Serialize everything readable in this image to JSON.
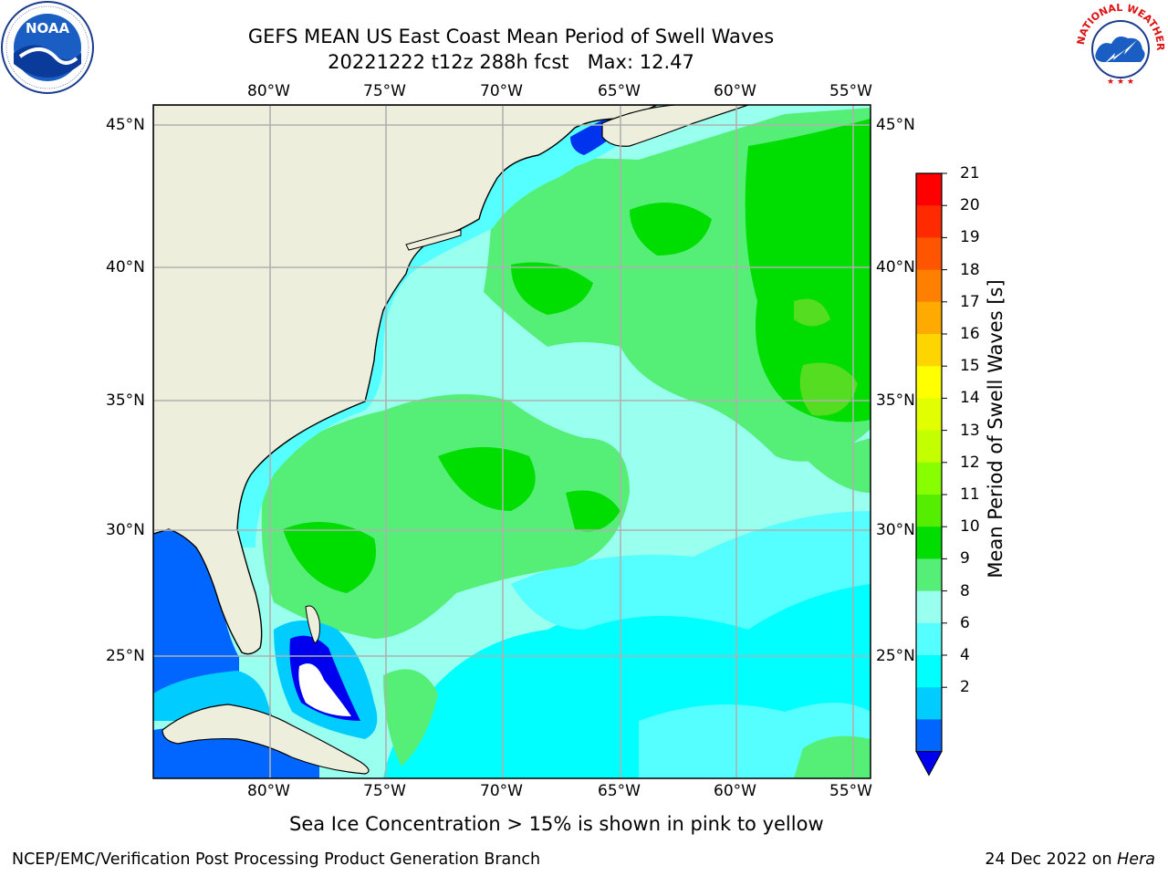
{
  "header": {
    "title_line1": "GEFS MEAN US East Coast Mean Period of Swell Waves",
    "title_line2": "20221222 t12z 288h fcst   Max: 12.47"
  },
  "logos": {
    "left": {
      "name": "NOAA",
      "icon": "noaa-logo",
      "text": "NOAA"
    },
    "right": {
      "name": "National Weather Service",
      "icon": "nws-logo",
      "arc_text": "NATIONAL WEATHER SERVICE"
    }
  },
  "map": {
    "lon_labels": [
      "80°W",
      "75°W",
      "70°W",
      "65°W",
      "60°W",
      "55°W"
    ],
    "lat_labels": [
      "45°N",
      "40°N",
      "35°N",
      "30°N",
      "25°N"
    ],
    "colors": {
      "land": "#eeeedd",
      "grid": "#b0b0b0",
      "ice": "#ffffff"
    }
  },
  "colorbar": {
    "label": "Mean Period of Swell Waves [s]",
    "ticks": [
      "21",
      "20",
      "19",
      "18",
      "17",
      "16",
      "15",
      "14",
      "13",
      "12",
      "11",
      "10",
      "9",
      "8",
      "6",
      "4",
      "2"
    ],
    "colors": [
      "#ff0000",
      "#ff2a00",
      "#ff5500",
      "#ff8000",
      "#ffaa00",
      "#ffd500",
      "#ffff00",
      "#e1ff00",
      "#c3ff00",
      "#87ff00",
      "#55ee00",
      "#00dd00",
      "#55ee77",
      "#99ffee",
      "#55ffff",
      "#00ffff",
      "#00ccff",
      "#0066ff"
    ],
    "under_color": "#0000ee"
  },
  "caption": "Sea Ice Concentration > 15% is shown in pink to yellow",
  "footer": {
    "left": "NCEP/EMC/Verification Post Processing Product Generation Branch",
    "right_prefix": "24 Dec 2022 on ",
    "right_host": "Hera"
  }
}
